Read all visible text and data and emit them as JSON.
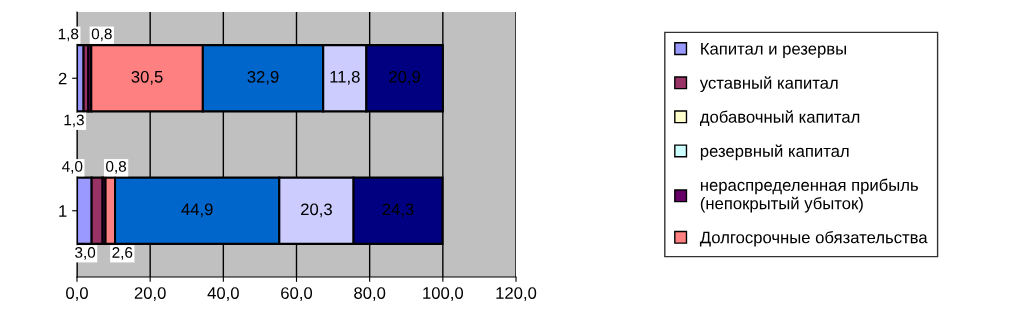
{
  "chart_data": {
    "type": "bar",
    "orientation": "horizontal",
    "stacked": true,
    "categories": [
      "2",
      "1"
    ],
    "series": [
      {
        "name": "Капитал и резервы",
        "color": "#9999ff",
        "values": [
          1.8,
          4.0
        ],
        "value_labels": [
          "1,8",
          "4,0"
        ]
      },
      {
        "name": "уставный капитал",
        "color": "#993366",
        "values": [
          1.3,
          3.0
        ],
        "value_labels": [
          "1,3",
          "3,0"
        ]
      },
      {
        "name": "добавочный капитал",
        "color": "#ffffcc",
        "values": [
          null,
          null
        ]
      },
      {
        "name": "резервный капитал",
        "color": "#ccffff",
        "values": [
          null,
          null
        ]
      },
      {
        "name": "нераспределенная прибыль\n(непокрытый убыток)",
        "color": "#660066",
        "values": [
          0.8,
          0.8
        ],
        "value_labels": [
          "0,8",
          "0,8"
        ]
      },
      {
        "name": "Долгосрочные обязательства",
        "color": "#ff8080",
        "values": [
          30.5,
          2.6
        ],
        "value_labels": [
          "30,5",
          "2,6"
        ]
      },
      {
        "color": "#0066cc",
        "values": [
          32.9,
          44.9
        ],
        "value_labels": [
          "32,9",
          "44,9"
        ]
      },
      {
        "color": "#ccccff",
        "values": [
          11.8,
          20.3
        ],
        "value_labels": [
          "11,8",
          "20,3"
        ]
      },
      {
        "color": "#000080",
        "values": [
          20.9,
          24.3
        ],
        "value_labels": [
          "20,9",
          "24,3"
        ]
      }
    ],
    "xlim": [
      0,
      120
    ],
    "xticks": [
      {
        "value": 0,
        "label": "0,0"
      },
      {
        "value": 20,
        "label": "20,0"
      },
      {
        "value": 40,
        "label": "40,0"
      },
      {
        "value": 60,
        "label": "60,0"
      },
      {
        "value": 80,
        "label": "80,0"
      },
      {
        "value": 100,
        "label": "100,0"
      },
      {
        "value": 120,
        "label": "120,0"
      }
    ],
    "grid": "x",
    "legend": "right"
  }
}
